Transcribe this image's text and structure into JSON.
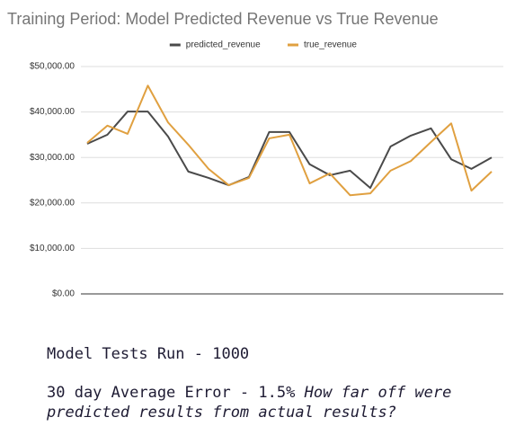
{
  "chart_data": {
    "type": "line",
    "title": "Training Period: Model Predicted Revenue vs True Revenue",
    "categories": [
      null,
      null,
      null,
      null,
      null,
      null,
      null,
      null,
      null,
      null,
      null,
      null,
      null,
      null,
      null,
      null,
      null,
      null,
      null,
      null,
      null
    ],
    "series": [
      {
        "name": "predicted_revenue",
        "color": "#4a4a4a",
        "values": [
          33000,
          35000,
          40100,
          40100,
          34600,
          26900,
          25500,
          23900,
          25700,
          35600,
          35600,
          28500,
          26100,
          27100,
          23300,
          32400,
          34800,
          36400,
          29600,
          27500,
          30000
        ]
      },
      {
        "name": "true_revenue",
        "color": "#e0a040",
        "values": [
          33200,
          37000,
          35200,
          45800,
          37700,
          32800,
          27500,
          23900,
          25500,
          34200,
          35000,
          24300,
          26500,
          21700,
          22100,
          27100,
          29200,
          33400,
          37500,
          22700,
          26900
        ]
      }
    ],
    "ylim": [
      0,
      50000
    ],
    "yticks": [
      {
        "value": 0,
        "label": "$0.00"
      },
      {
        "value": 10000,
        "label": "$10,000.00"
      },
      {
        "value": 20000,
        "label": "$20,000.00"
      },
      {
        "value": 30000,
        "label": "$30,000.00"
      },
      {
        "value": 40000,
        "label": "$40,000.00"
      },
      {
        "value": 50000,
        "label": "$50,000.00"
      }
    ],
    "grid": true,
    "legend": "top"
  },
  "notes": {
    "tests_run": "Model Tests Run - 1000",
    "error": "30 day Average Error - 1.5%",
    "error_note": "How far off were predicted results from actual results?"
  }
}
